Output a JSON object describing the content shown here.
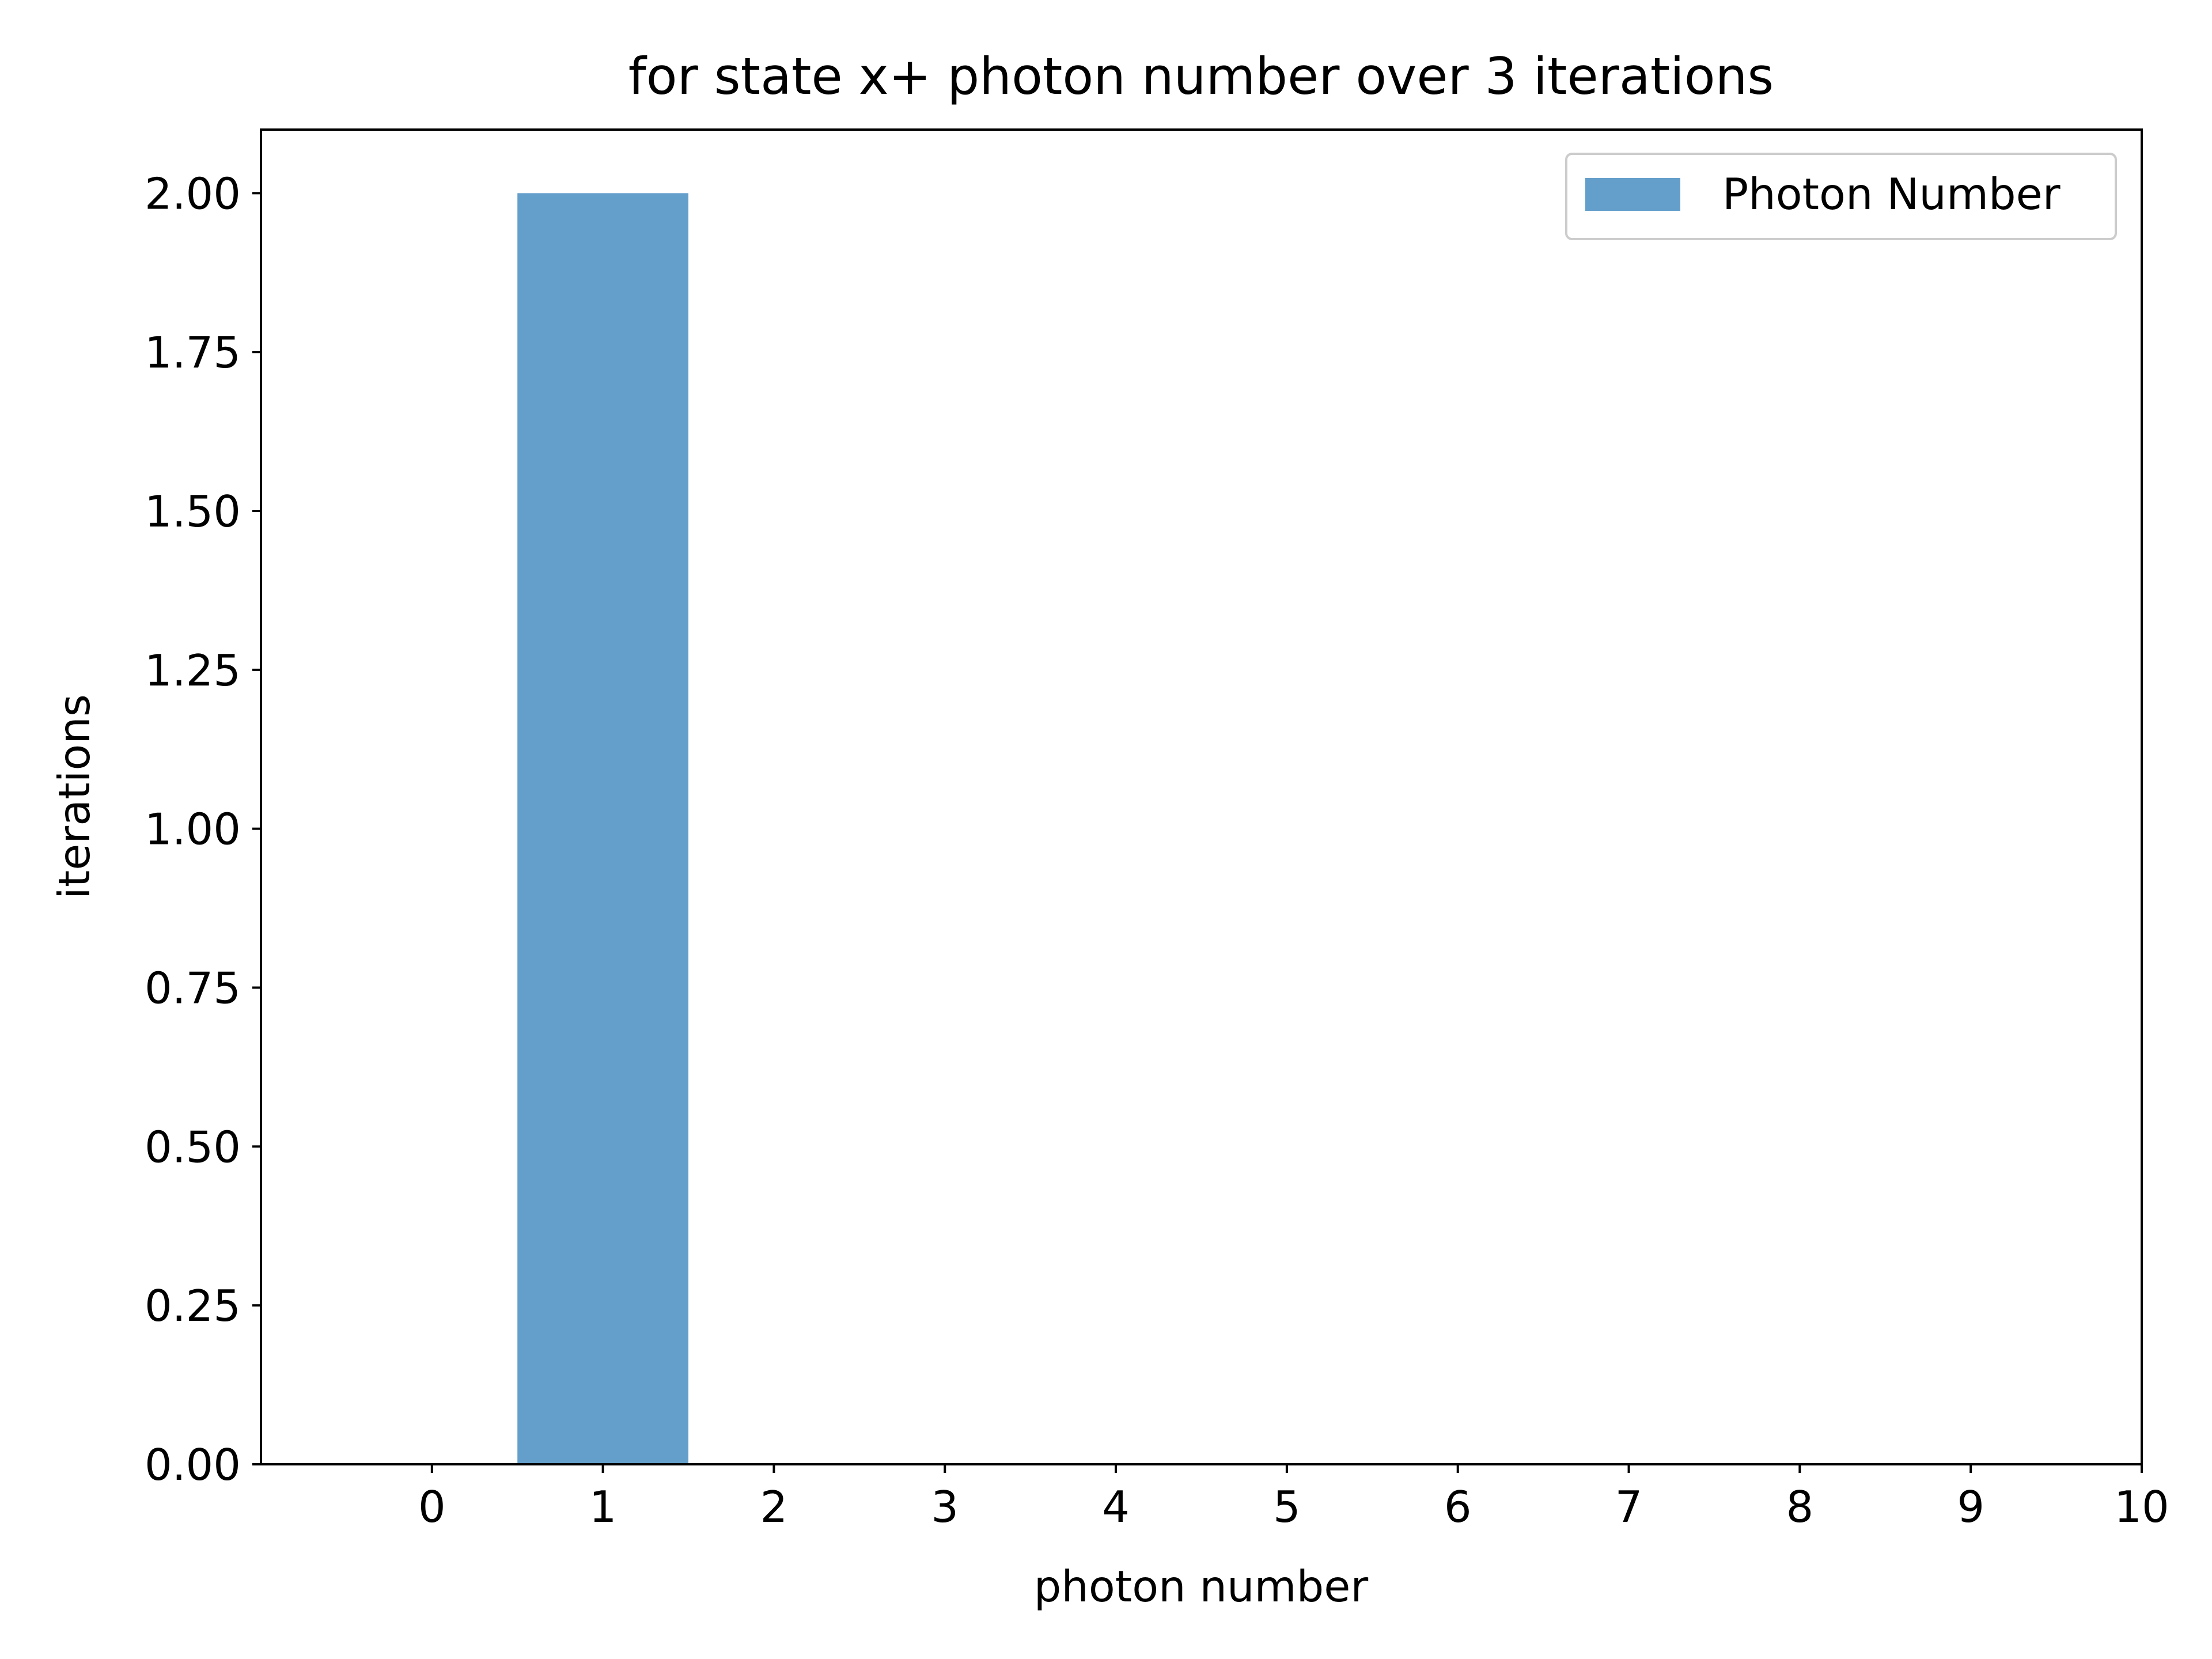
{
  "chart_data": {
    "type": "bar",
    "title": "for state x+ photon number over 3 iterations",
    "xlabel": "photon number",
    "ylabel": "iterations",
    "x": [
      1
    ],
    "series": [
      {
        "name": "Photon Number",
        "values": [
          2.0
        ],
        "color": "#649fcb"
      }
    ],
    "bar_width": 1.0,
    "xlim": [
      -1,
      10
    ],
    "ylim": [
      0,
      2.1
    ],
    "xticks": [
      0,
      1,
      2,
      3,
      4,
      5,
      6,
      7,
      8,
      9,
      10
    ],
    "xtick_labels": [
      "0",
      "1",
      "2",
      "3",
      "4",
      "5",
      "6",
      "7",
      "8",
      "9",
      "10"
    ],
    "yticks": [
      0,
      0.25,
      0.5,
      0.75,
      1.0,
      1.25,
      1.5,
      1.75,
      2.0
    ],
    "ytick_labels": [
      "0.00",
      "0.25",
      "0.50",
      "0.75",
      "1.00",
      "1.25",
      "1.50",
      "1.75",
      "2.00"
    ],
    "grid": false,
    "legend_position": "top-right"
  }
}
